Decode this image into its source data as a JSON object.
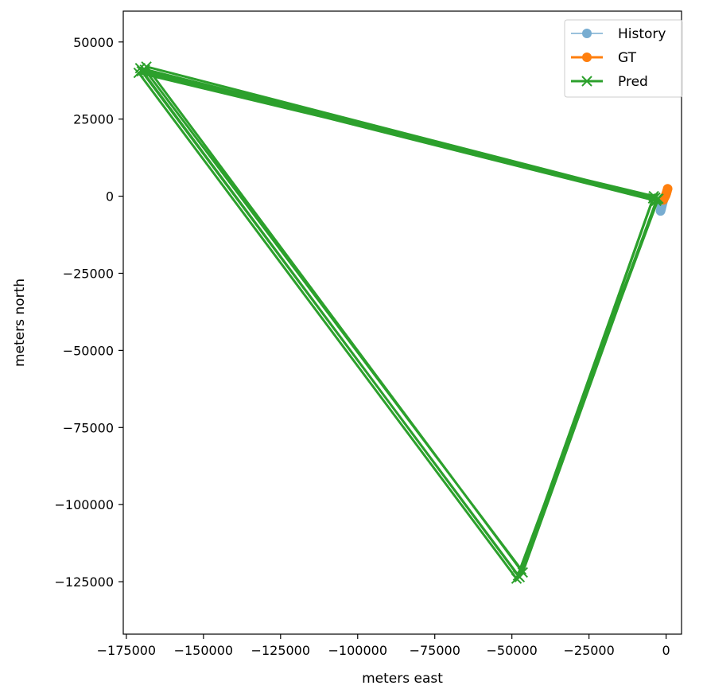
{
  "chart_data": {
    "type": "line",
    "title": "",
    "xlabel": "meters east",
    "ylabel": "meters north",
    "xlim": [
      -176000,
      5000
    ],
    "ylim": [
      -142000,
      60000
    ],
    "xticks": [
      -175000,
      -150000,
      -125000,
      -100000,
      -75000,
      -50000,
      -25000,
      0
    ],
    "xtick_labels": [
      "−175000",
      "−150000",
      "−125000",
      "−100000",
      "−75000",
      "−50000",
      "−25000",
      "0"
    ],
    "yticks": [
      50000,
      25000,
      0,
      -25000,
      -50000,
      -75000,
      -100000,
      -125000
    ],
    "ytick_labels": [
      "50000",
      "25000",
      "0",
      "−25000",
      "−50000",
      "−75000",
      "−100000",
      "−125000"
    ],
    "grid": false,
    "legend_position": "top-right",
    "series": [
      {
        "name": "History",
        "color": "#1f77b4",
        "marker": "circle",
        "alpha": 0.6,
        "x": [
          -1800,
          -1700,
          -1600,
          -1500,
          -1400,
          -1300,
          -1200,
          -1100,
          -1000
        ],
        "y": [
          -4800,
          -4400,
          -4000,
          -3600,
          -3200,
          -2800,
          -2400,
          -2000,
          -1600
        ]
      },
      {
        "name": "GT",
        "color": "#ff7f0e",
        "marker": "circle",
        "alpha": 1.0,
        "x": [
          -900,
          -700,
          -500,
          -300,
          -100,
          100,
          300,
          500
        ],
        "y": [
          -1200,
          -800,
          -400,
          0,
          400,
          1000,
          1700,
          2400
        ]
      },
      {
        "name": "Pred",
        "color": "#2ca02c",
        "marker": "x",
        "alpha": 1.0,
        "x": [
          -3500,
          -170500,
          -48000,
          -3000,
          -169000,
          -47000,
          -4000,
          -171000,
          -48500,
          -2500,
          -168500,
          -46500,
          -3200,
          -170000,
          -47500,
          -4200
        ],
        "y": [
          -500,
          41500,
          -123000,
          -1000,
          41000,
          -121000,
          0,
          40000,
          -124000,
          -800,
          42000,
          -122000,
          -1500,
          40500,
          -123500,
          -700
        ]
      }
    ]
  }
}
